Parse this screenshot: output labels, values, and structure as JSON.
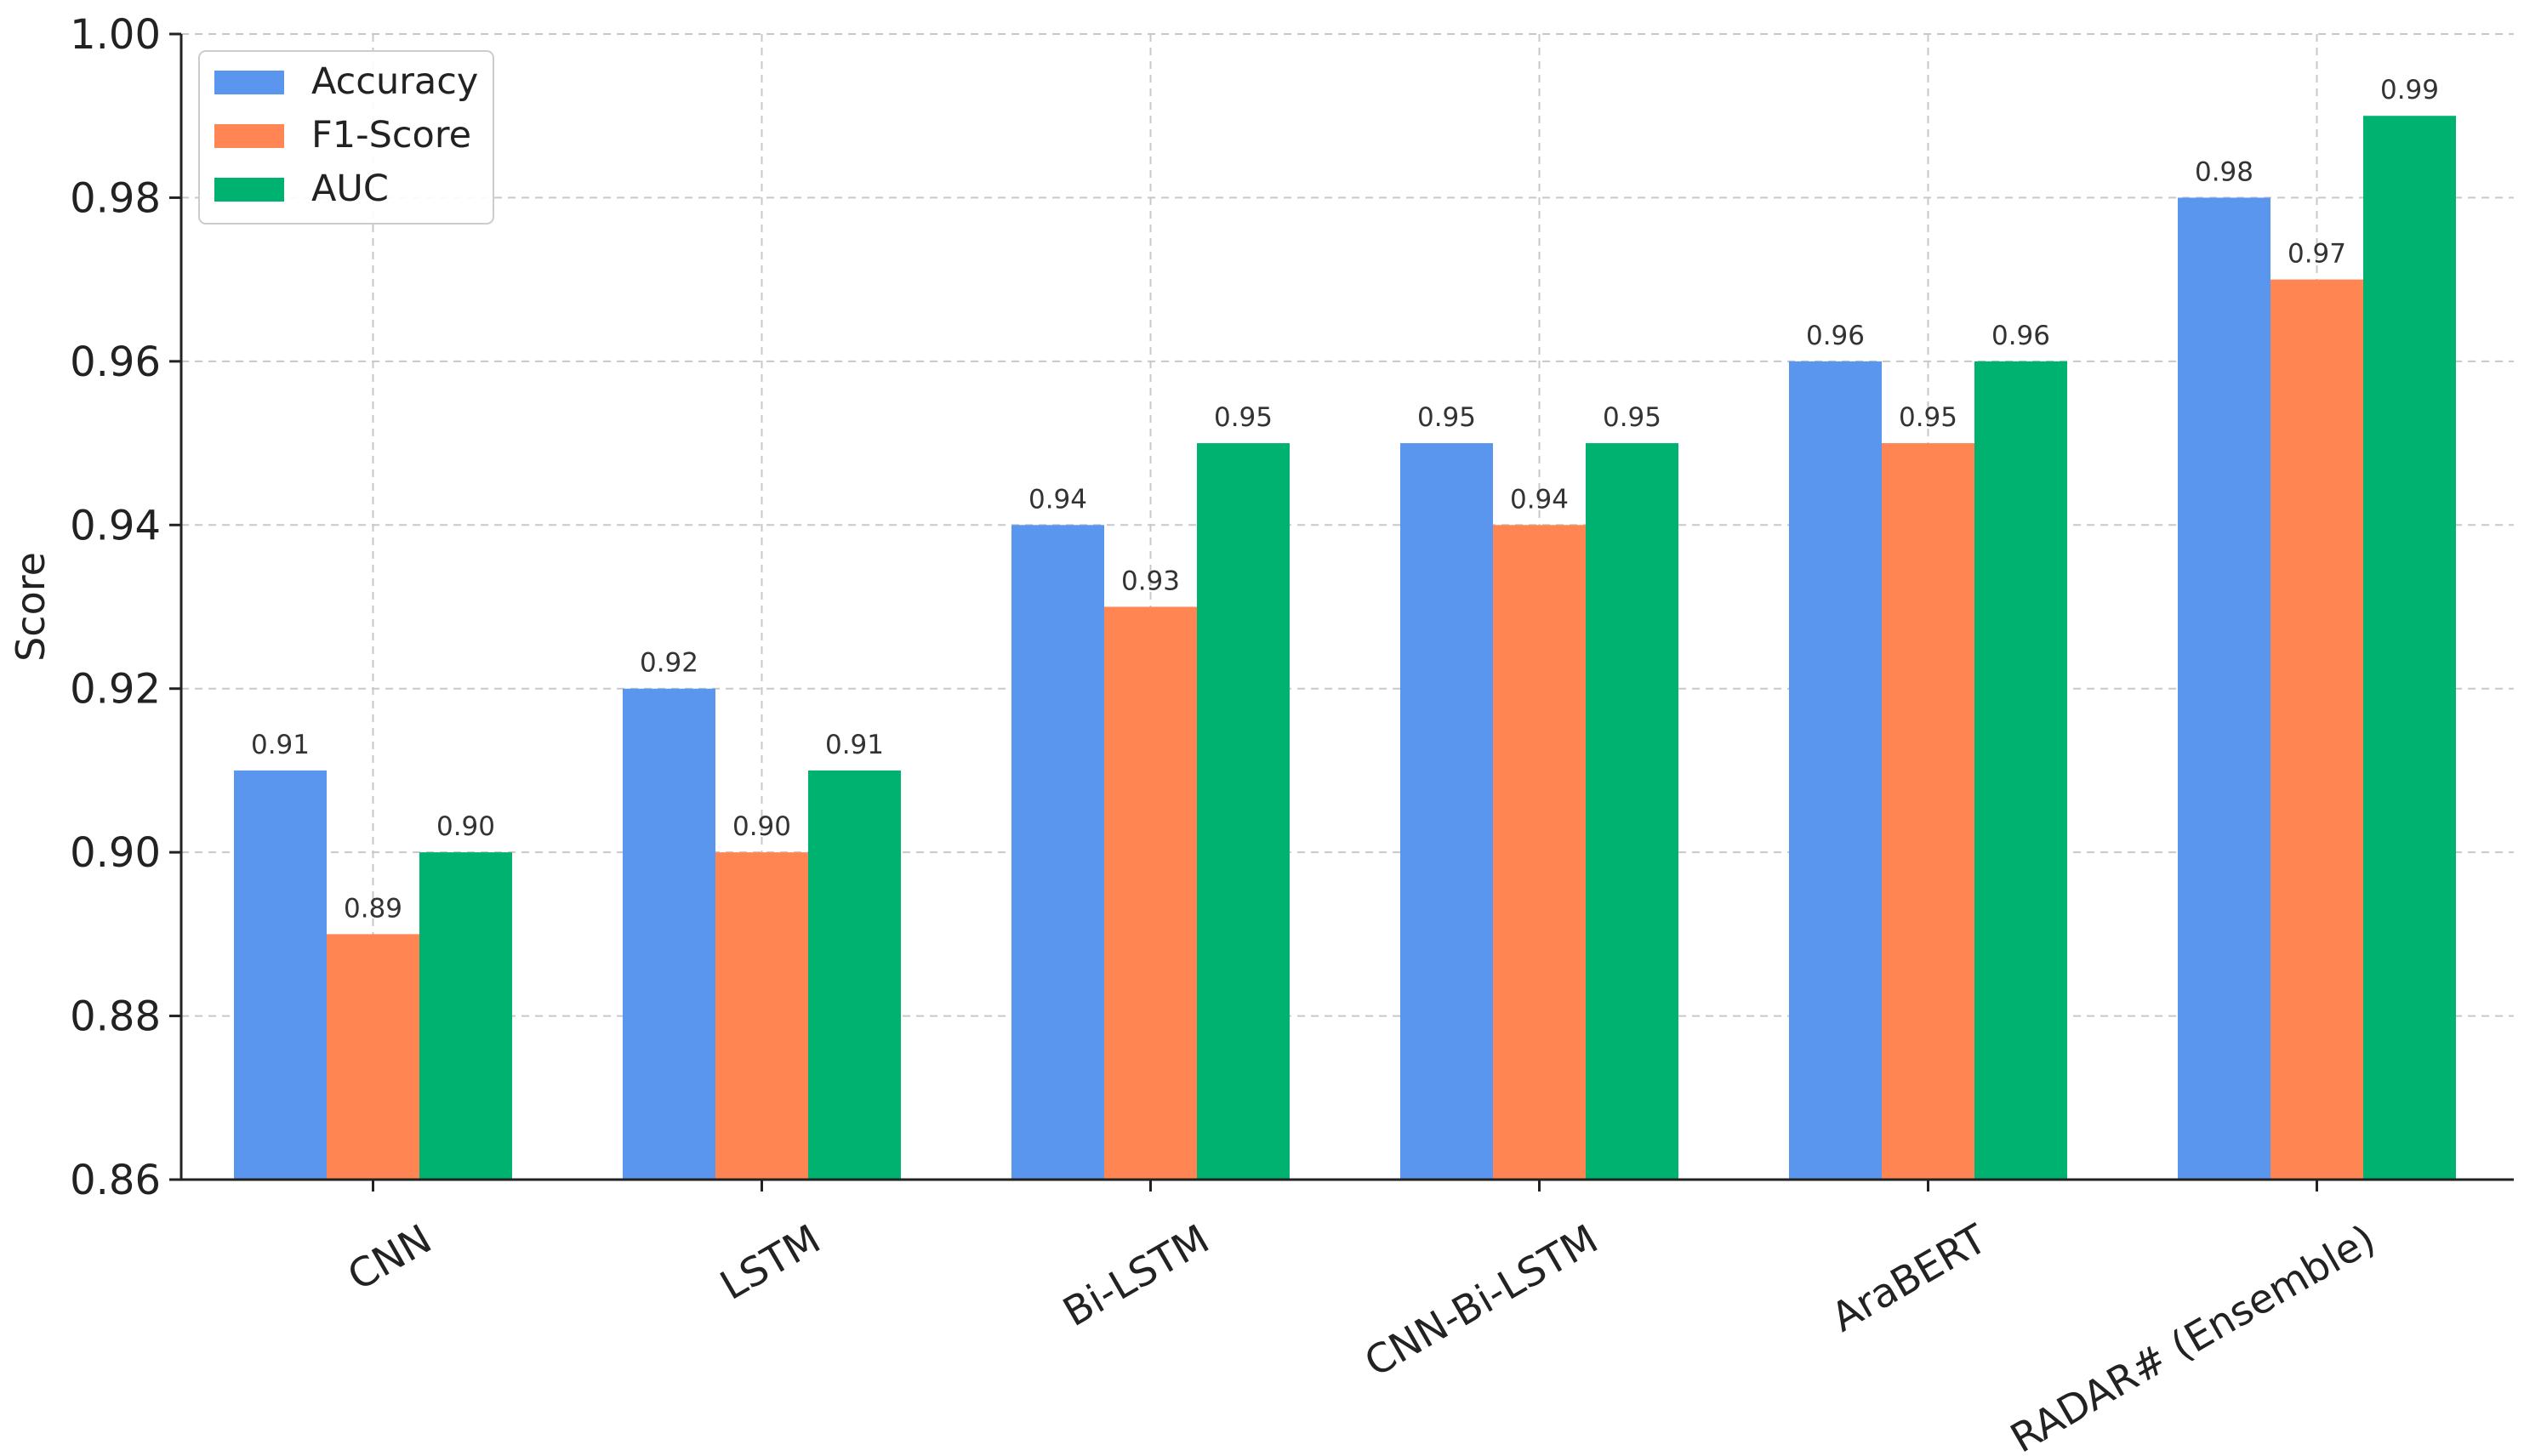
{
  "chart_data": {
    "type": "bar",
    "categories": [
      "CNN",
      "LSTM",
      "Bi-LSTM",
      "CNN-Bi-LSTM",
      "AraBERT",
      "RADAR# (Ensemble)"
    ],
    "series": [
      {
        "name": "Accuracy",
        "values": [
          0.91,
          0.92,
          0.94,
          0.95,
          0.96,
          0.98
        ],
        "color": "#5b96ee"
      },
      {
        "name": "F1-Score",
        "values": [
          0.89,
          0.9,
          0.93,
          0.94,
          0.95,
          0.97
        ],
        "color": "#ff8653"
      },
      {
        "name": "AUC",
        "values": [
          0.9,
          0.91,
          0.95,
          0.95,
          0.96,
          0.99
        ],
        "color": "#00b26f"
      }
    ],
    "title": "",
    "xlabel": "",
    "ylabel": "Score",
    "ylim": [
      0.86,
      1.0
    ],
    "yticks": [
      "0.86",
      "0.88",
      "0.90",
      "0.92",
      "0.94",
      "0.96",
      "0.98",
      "1.00"
    ],
    "value_labels": [
      [
        "0.91",
        "0.92",
        "0.94",
        "0.95",
        "0.96",
        "0.98"
      ],
      [
        "0.89",
        "0.90",
        "0.93",
        "0.94",
        "0.95",
        "0.97"
      ],
      [
        "0.90",
        "0.91",
        "0.95",
        "0.95",
        "0.96",
        "0.99"
      ]
    ],
    "grid": true,
    "legend_position": "top-left",
    "x_tick_rotation_deg": -30
  }
}
